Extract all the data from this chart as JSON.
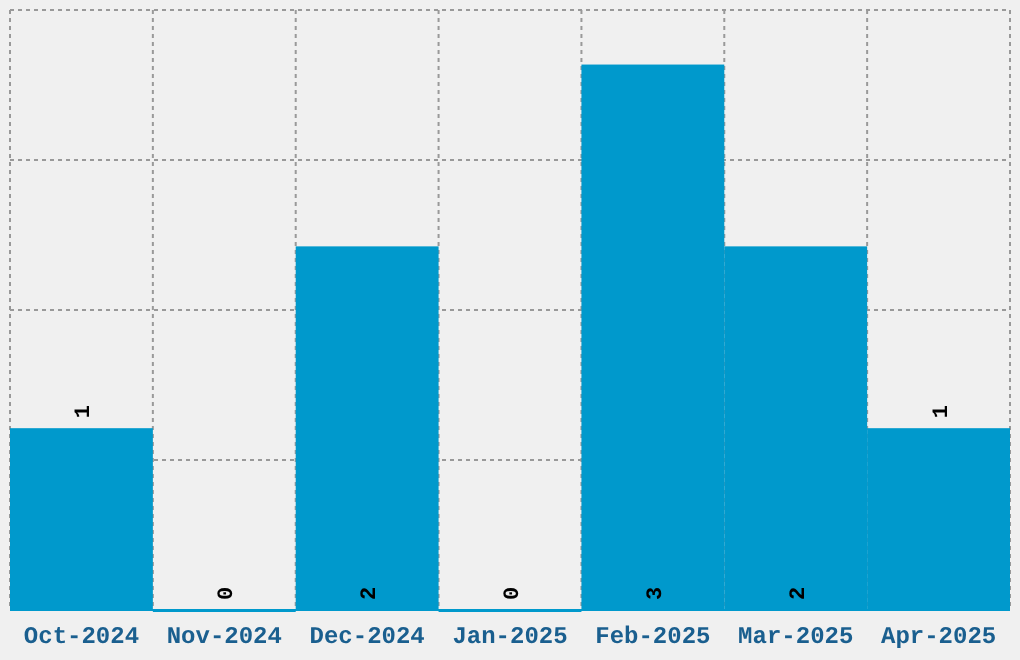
{
  "chart_data": {
    "type": "bar",
    "categories": [
      "Oct-2024",
      "Nov-2024",
      "Dec-2024",
      "Jan-2025",
      "Feb-2025",
      "Mar-2025",
      "Apr-2025"
    ],
    "values": [
      1,
      0,
      2,
      0,
      3,
      2,
      1
    ],
    "color": "#0099cc",
    "data_labels": true,
    "ylim": [
      0,
      3.3
    ],
    "yticks": [
      {
        "value": 0,
        "label": null
      },
      {
        "value": 0.825,
        "label": null
      },
      {
        "value": 1.65,
        "label": null
      },
      {
        "value": 2.475,
        "label": null
      },
      {
        "value": 3.3,
        "label": null
      }
    ],
    "grid": true,
    "tick_labels": "x"
  }
}
